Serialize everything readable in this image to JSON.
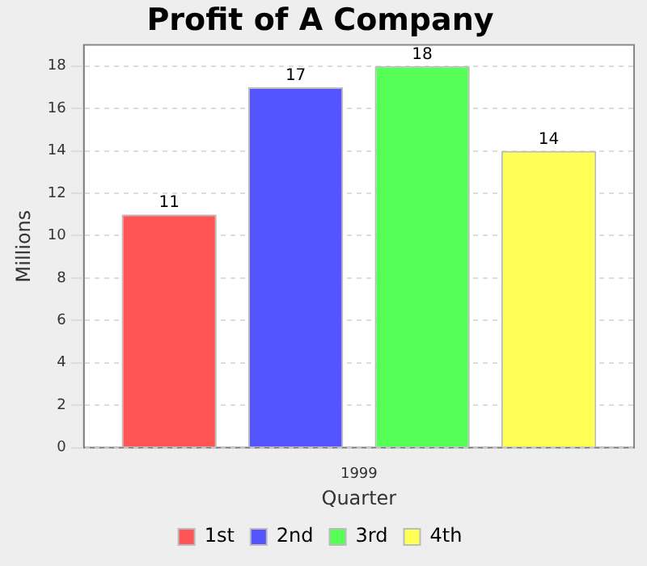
{
  "chart_data": {
    "type": "bar",
    "title": "Profit of A Company",
    "xlabel": "Quarter",
    "ylabel": "Millions",
    "categories": [
      "1999"
    ],
    "series": [
      {
        "name": "1st",
        "color": "#ff5555",
        "values": [
          11
        ]
      },
      {
        "name": "2nd",
        "color": "#5555ff",
        "values": [
          17
        ]
      },
      {
        "name": "3rd",
        "color": "#55ff55",
        "values": [
          18
        ]
      },
      {
        "name": "4th",
        "color": "#ffff55",
        "values": [
          14
        ]
      }
    ],
    "ylim": [
      0,
      19
    ],
    "yticks": [
      0,
      2,
      4,
      6,
      8,
      10,
      12,
      14,
      16,
      18
    ],
    "grid": "y",
    "legend": "bottom",
    "data_labels": true
  }
}
